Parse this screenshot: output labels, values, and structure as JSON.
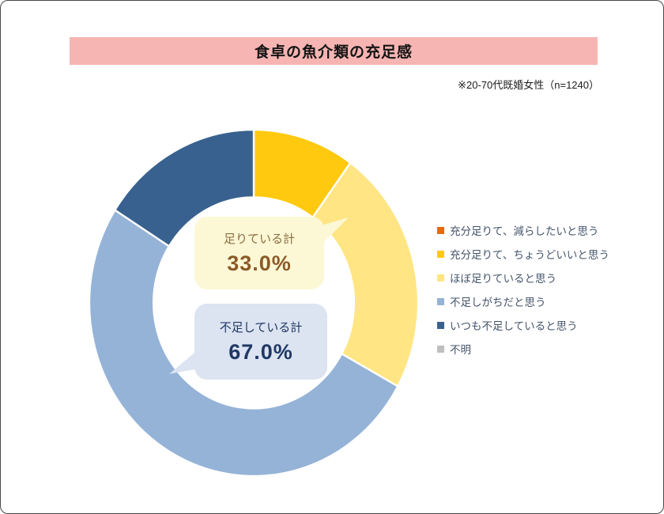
{
  "header": {
    "title": "食卓の魚介類の充足感",
    "note": "※20-70代既婚女性（n=1240）",
    "banner_color": "#F6B5B3"
  },
  "callouts": {
    "sufficient": {
      "label": "足りている計",
      "value": "33.0%",
      "bg": "#FCF8D6",
      "label_color": "#8C6D3F",
      "value_color": "#8B5A28"
    },
    "insufficient": {
      "label": "不足している計",
      "value": "67.0%",
      "bg": "#DCE3F1",
      "label_color": "#1F3864",
      "value_color": "#1F3864"
    }
  },
  "chart_data": {
    "type": "pie",
    "subtype": "donut",
    "title": "食卓の魚介類の充足感",
    "sample_note": "※20-70代既婚女性（n=1240）",
    "start_angle_deg": 0,
    "direction": "clockwise",
    "inner_radius_ratio": 0.61,
    "legend_position": "right",
    "series": [
      {
        "label": "充分足りて、減らしたいと思う",
        "value": 0.0,
        "color": "#E36C09"
      },
      {
        "label": "充分足りて、ちょうどいいと思う",
        "value": 10.0,
        "color": "#FFC90F"
      },
      {
        "label": "ほぼ足りていると思う",
        "value": 23.0,
        "color": "#FFE583"
      },
      {
        "label": "不足しがちだと思う",
        "value": 51.0,
        "color": "#95B3D7"
      },
      {
        "label": "いつも不足していると思う",
        "value": 16.0,
        "color": "#38618F"
      },
      {
        "label": "不明",
        "value": 0.0,
        "color": "#BFBFBF"
      }
    ],
    "annotations": [
      {
        "label": "足りている計",
        "value": 33.0
      },
      {
        "label": "不足している計",
        "value": 67.0
      }
    ]
  }
}
